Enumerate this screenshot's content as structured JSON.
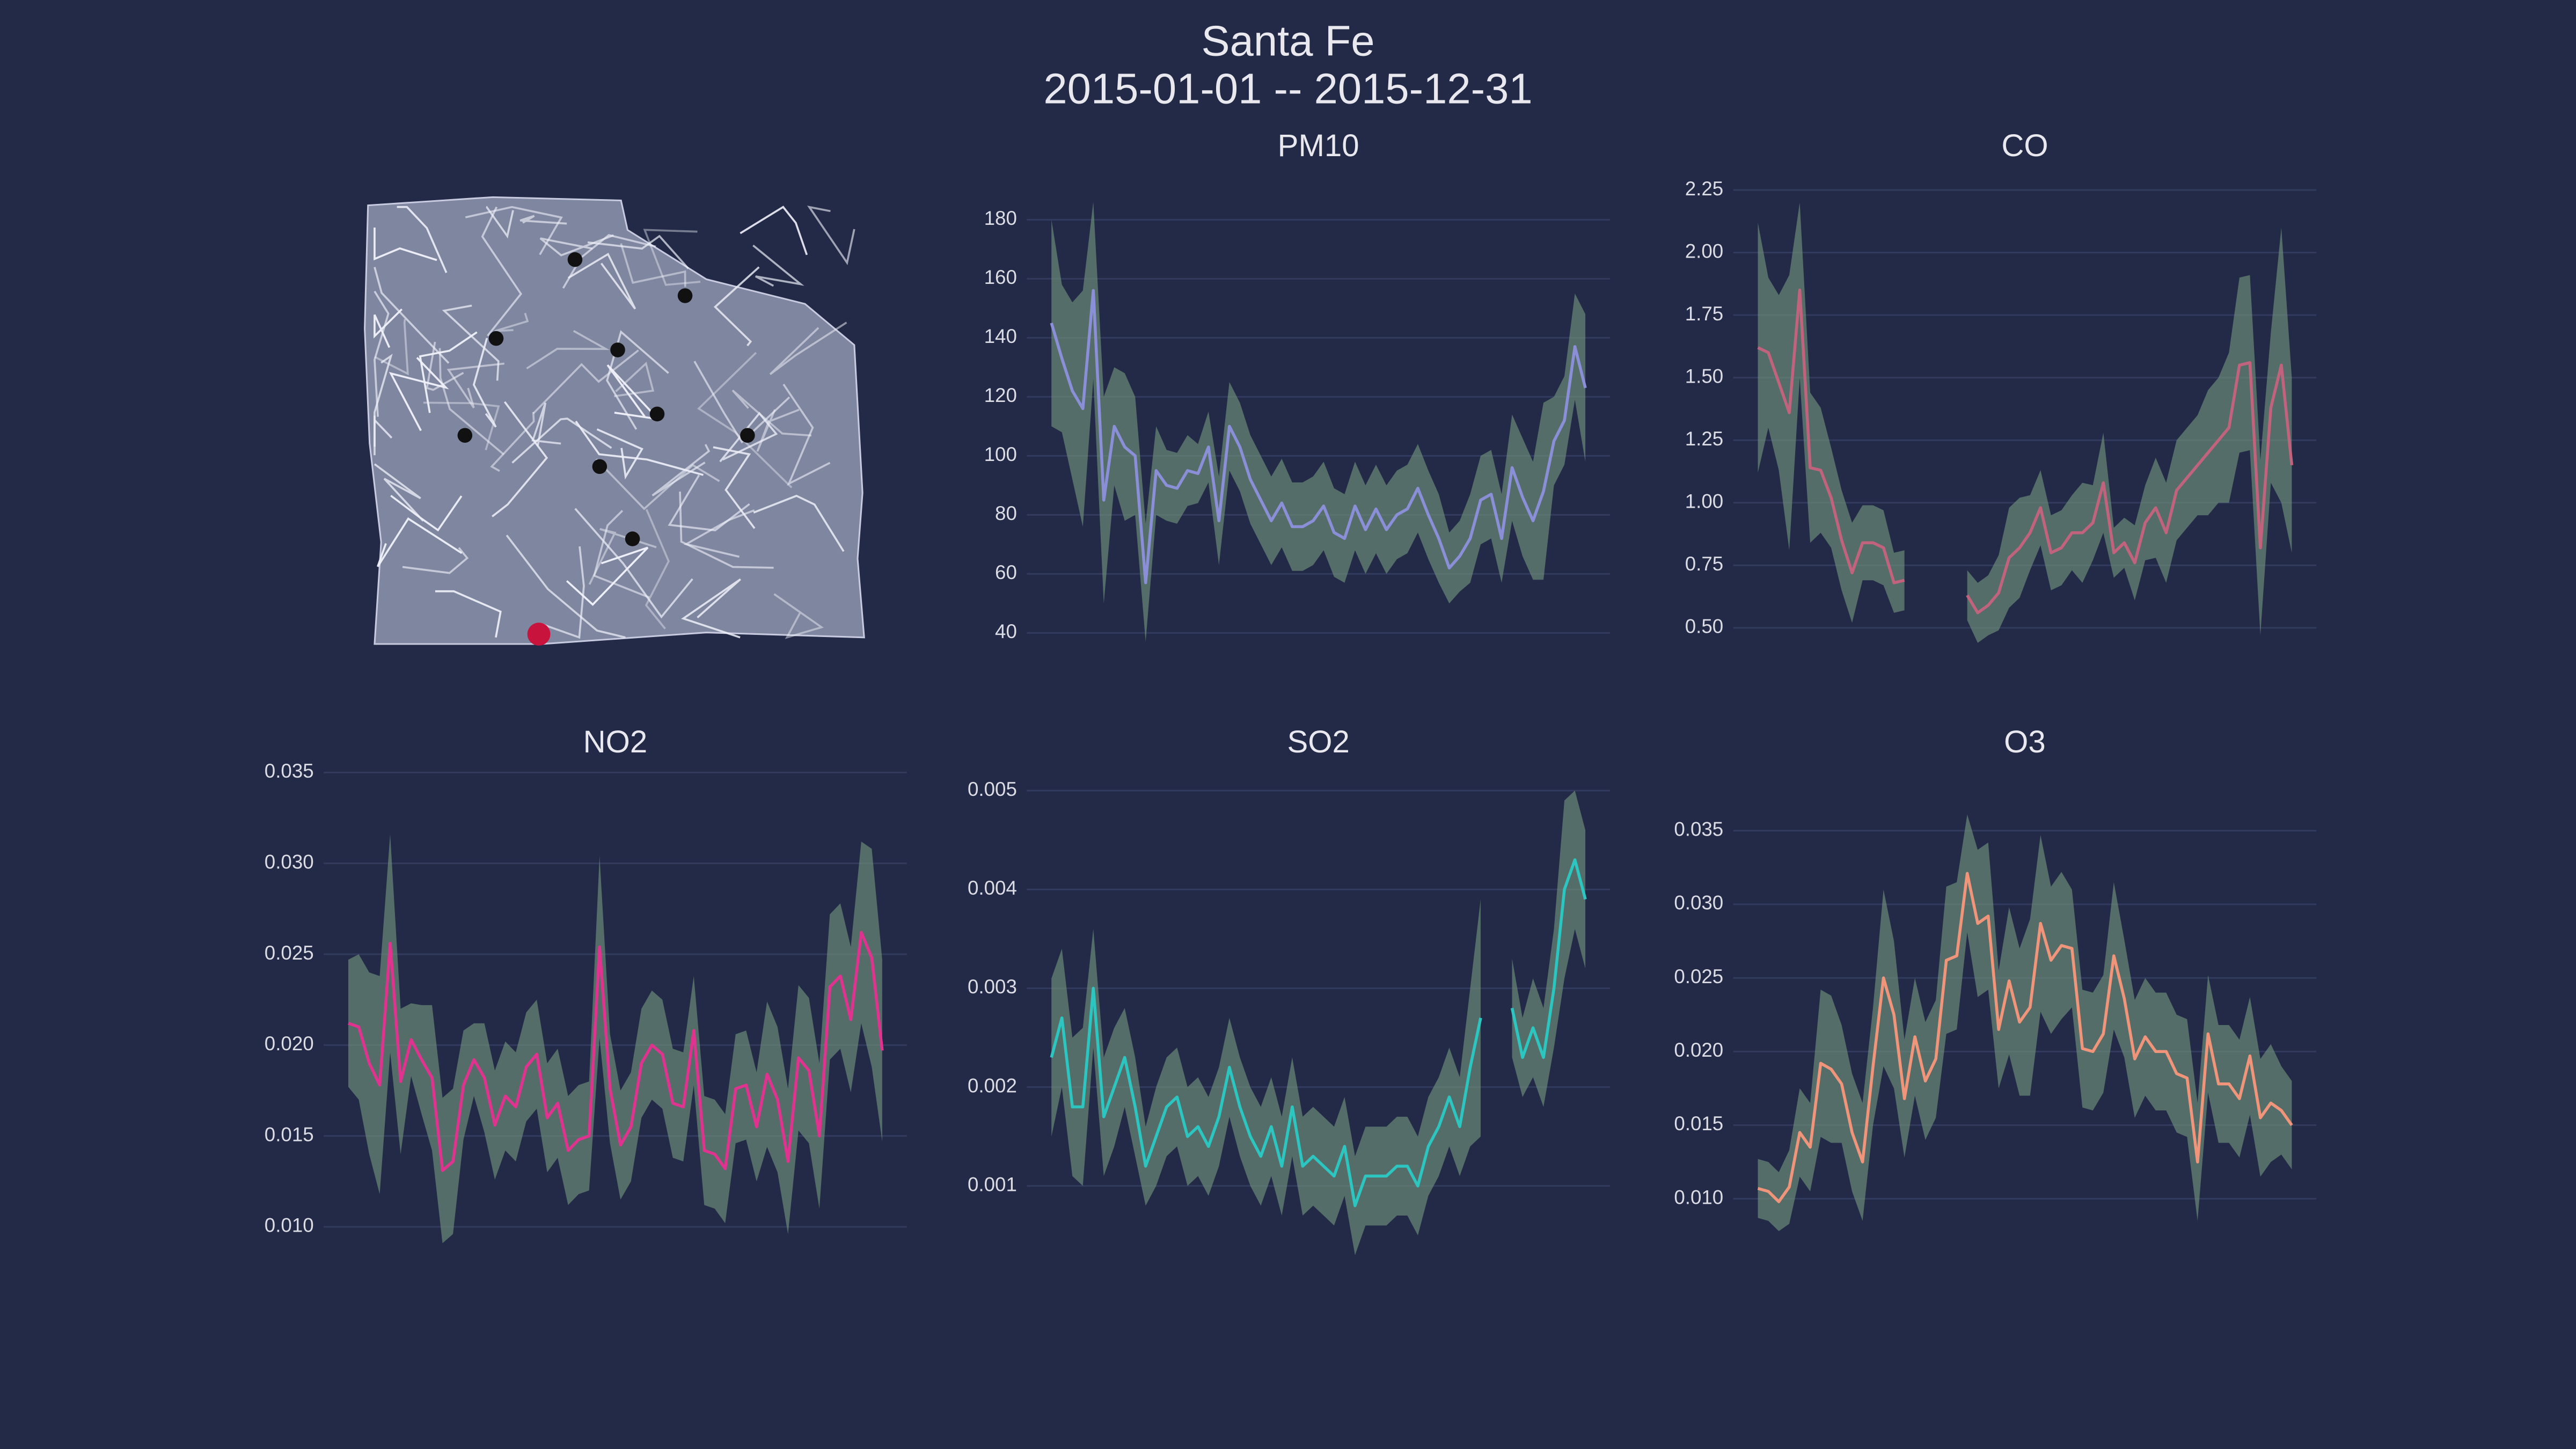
{
  "title": "Santa Fe",
  "subtitle": "2015-01-01 -- 2015-12-31",
  "chart_data": [
    {
      "type": "line",
      "title": "PM10",
      "color": "#8a8fd8",
      "band_color": "#6b8a78",
      "grid": true,
      "ylim": [
        29,
        196
      ],
      "yticks": [
        40,
        60,
        80,
        100,
        120,
        140,
        160,
        180
      ],
      "values": [
        145,
        133,
        122,
        116,
        156,
        85,
        110,
        103,
        100,
        57,
        95,
        90,
        89,
        95,
        94,
        103,
        78,
        110,
        103,
        92,
        85,
        78,
        84,
        76,
        76,
        78,
        83,
        74,
        72,
        83,
        75,
        82,
        75,
        80,
        82,
        89,
        80,
        72,
        62,
        66,
        72,
        85,
        87,
        72,
        96,
        86,
        78,
        88,
        105,
        112,
        137,
        123
      ],
      "error": [
        35,
        25,
        30,
        40,
        30,
        35,
        20,
        25,
        20,
        20,
        15,
        12,
        12,
        12,
        10,
        12,
        15,
        15,
        15,
        15,
        15,
        15,
        15,
        15,
        15,
        15,
        15,
        15,
        15,
        15,
        15,
        15,
        15,
        15,
        15,
        15,
        15,
        15,
        12,
        12,
        15,
        15,
        15,
        15,
        18,
        20,
        20,
        30,
        15,
        15,
        18,
        25
      ]
    },
    {
      "type": "line",
      "title": "CO",
      "color": "#c2637e",
      "band_color": "#6b8a78",
      "grid": true,
      "ylim": [
        0.35,
        2.32
      ],
      "yticks": [
        {
          "value": 0.5,
          "label": "0.50"
        },
        0.75,
        {
          "value": 1,
          "label": "1.00"
        },
        1.25,
        {
          "value": 1.5,
          "label": "1.50"
        },
        1.75,
        {
          "value": 2,
          "label": "2.00"
        },
        2.25
      ],
      "values": [
        1.62,
        1.6,
        1.48,
        1.36,
        1.85,
        1.14,
        1.13,
        1.02,
        0.85,
        0.72,
        0.84,
        0.84,
        0.82,
        0.68,
        0.69,
        null,
        null,
        null,
        null,
        null,
        0.63,
        0.56,
        0.59,
        0.64,
        0.78,
        0.82,
        0.88,
        0.98,
        0.8,
        0.82,
        0.88,
        0.88,
        0.92,
        1.08,
        0.8,
        0.84,
        0.76,
        0.92,
        0.98,
        0.88,
        1.05,
        1.1,
        1.15,
        1.2,
        1.25,
        1.3,
        1.55,
        1.56,
        0.82,
        1.38,
        1.55,
        1.15
      ],
      "error": [
        0.5,
        0.3,
        0.35,
        0.55,
        0.35,
        0.3,
        0.25,
        0.2,
        0.2,
        0.2,
        0.15,
        0.15,
        0.15,
        0.12,
        0.12,
        null,
        null,
        null,
        null,
        null,
        0.1,
        0.12,
        0.12,
        0.15,
        0.2,
        0.2,
        0.15,
        0.15,
        0.15,
        0.15,
        0.15,
        0.2,
        0.15,
        0.2,
        0.1,
        0.1,
        0.15,
        0.15,
        0.2,
        0.2,
        0.2,
        0.2,
        0.2,
        0.25,
        0.25,
        0.3,
        0.35,
        0.35,
        0.35,
        0.3,
        0.55,
        0.35
      ]
    },
    {
      "type": "line",
      "title": "NO2",
      "color": "#e0338f",
      "band_color": "#6b8a78",
      "grid": true,
      "ylim": [
        0.0079,
        0.0352
      ],
      "yticks": [
        {
          "value": 0.01,
          "label": "0.010"
        },
        0.015,
        {
          "value": 0.02,
          "label": "0.020"
        },
        0.025,
        {
          "value": 0.03,
          "label": "0.030"
        },
        0.035
      ],
      "values": [
        0.0212,
        0.021,
        0.019,
        0.0178,
        0.0256,
        0.018,
        0.0203,
        0.0192,
        0.0182,
        0.0131,
        0.0136,
        0.0178,
        0.0192,
        0.0182,
        0.0156,
        0.0172,
        0.0166,
        0.0188,
        0.0195,
        0.016,
        0.0168,
        0.0142,
        0.0148,
        0.015,
        0.0254,
        0.0176,
        0.0145,
        0.0155,
        0.019,
        0.02,
        0.0195,
        0.0168,
        0.0166,
        0.0208,
        0.0142,
        0.014,
        0.0132,
        0.0176,
        0.0178,
        0.0155,
        0.0184,
        0.017,
        0.0136,
        0.0193,
        0.0186,
        0.015,
        0.0232,
        0.0238,
        0.0214,
        0.0262,
        0.0248,
        0.0197
      ],
      "error": [
        0.0035,
        0.004,
        0.005,
        0.006,
        0.006,
        0.004,
        0.002,
        0.003,
        0.004,
        0.004,
        0.004,
        0.003,
        0.002,
        0.003,
        0.003,
        0.003,
        0.003,
        0.003,
        0.003,
        0.003,
        0.003,
        0.003,
        0.003,
        0.003,
        0.005,
        0.003,
        0.003,
        0.003,
        0.003,
        0.003,
        0.003,
        0.003,
        0.003,
        0.003,
        0.003,
        0.003,
        0.003,
        0.003,
        0.003,
        0.003,
        0.004,
        0.004,
        0.004,
        0.004,
        0.004,
        0.004,
        0.004,
        0.004,
        0.004,
        0.005,
        0.006,
        0.005
      ]
    },
    {
      "type": "line",
      "title": "SO2",
      "color": "#2cc5c0",
      "band_color": "#6b8a78",
      "grid": true,
      "ylim": [
        0.0002,
        0.00522
      ],
      "yticks": [
        0.001,
        0.002,
        0.003,
        0.004,
        0.005
      ],
      "values": [
        0.0023,
        0.0027,
        0.0018,
        0.0018,
        0.003,
        0.0017,
        0.002,
        0.0023,
        0.0018,
        0.0012,
        0.0015,
        0.0018,
        0.0019,
        0.0015,
        0.0016,
        0.0014,
        0.0017,
        0.0022,
        0.0018,
        0.0015,
        0.0013,
        0.0016,
        0.0012,
        0.0018,
        0.0012,
        0.0013,
        0.0012,
        0.0011,
        0.0014,
        0.0008,
        0.0011,
        0.0011,
        0.0011,
        0.0012,
        0.0012,
        0.001,
        0.0014,
        0.0016,
        0.0019,
        0.0016,
        0.0022,
        0.0027,
        null,
        null,
        0.0028,
        0.0023,
        0.0026,
        0.0023,
        0.003,
        0.004,
        0.0043,
        0.0039
      ],
      "error": [
        0.0008,
        0.0007,
        0.0007,
        0.0008,
        0.0006,
        0.0006,
        0.0006,
        0.0005,
        0.0005,
        0.0004,
        0.0005,
        0.0005,
        0.0005,
        0.0005,
        0.0005,
        0.0005,
        0.0005,
        0.0005,
        0.0005,
        0.0005,
        0.0005,
        0.0005,
        0.0005,
        0.0005,
        0.0005,
        0.0005,
        0.0005,
        0.0005,
        0.0005,
        0.0005,
        0.0005,
        0.0005,
        0.0005,
        0.0005,
        0.0005,
        0.0005,
        0.0005,
        0.0005,
        0.0005,
        0.0005,
        0.0008,
        0.0012,
        null,
        null,
        0.0005,
        0.0004,
        0.0005,
        0.0005,
        0.0006,
        0.0009,
        0.0007,
        0.0007
      ]
    },
    {
      "type": "line",
      "title": "O3",
      "color": "#f0957a",
      "band_color": "#6b8a78",
      "grid": true,
      "ylim": [
        0.0055,
        0.0392
      ],
      "yticks": [
        {
          "value": 0.01,
          "label": "0.010"
        },
        0.015,
        {
          "value": 0.02,
          "label": "0.020"
        },
        0.025,
        {
          "value": 0.03,
          "label": "0.030"
        },
        0.035
      ],
      "values": [
        0.0107,
        0.0105,
        0.0098,
        0.0108,
        0.0145,
        0.0135,
        0.0192,
        0.0188,
        0.0178,
        0.0145,
        0.0125,
        0.019,
        0.025,
        0.0225,
        0.0168,
        0.021,
        0.018,
        0.0195,
        0.0262,
        0.0265,
        0.0321,
        0.0287,
        0.0292,
        0.0215,
        0.0248,
        0.022,
        0.023,
        0.0287,
        0.0262,
        0.0272,
        0.027,
        0.0202,
        0.02,
        0.0212,
        0.0265,
        0.0236,
        0.0195,
        0.021,
        0.02,
        0.02,
        0.0185,
        0.0182,
        0.0125,
        0.0212,
        0.0178,
        0.0178,
        0.0168,
        0.0197,
        0.0155,
        0.0165,
        0.016,
        0.015
      ],
      "error": [
        0.002,
        0.002,
        0.002,
        0.0025,
        0.003,
        0.003,
        0.005,
        0.005,
        0.004,
        0.004,
        0.004,
        0.004,
        0.006,
        0.005,
        0.004,
        0.004,
        0.004,
        0.004,
        0.005,
        0.005,
        0.004,
        0.005,
        0.005,
        0.004,
        0.005,
        0.005,
        0.006,
        0.006,
        0.005,
        0.005,
        0.004,
        0.004,
        0.004,
        0.004,
        0.005,
        0.004,
        0.004,
        0.004,
        0.004,
        0.004,
        0.004,
        0.004,
        0.004,
        0.004,
        0.004,
        0.004,
        0.004,
        0.004,
        0.004,
        0.004,
        0.003,
        0.003
      ]
    }
  ]
}
